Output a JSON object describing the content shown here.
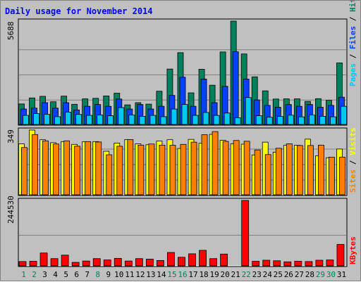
{
  "title": "Daily usage for November 2014",
  "colors": {
    "hits": "#00805c",
    "files": "#0040ff",
    "pages": "#00c8f0",
    "visits": "#ff8000",
    "sites": "#ffff00",
    "kbytes": "#ff0000",
    "weekend_label": "#00805c",
    "today_label": "#00805c"
  },
  "chart_data": [
    {
      "type": "bar",
      "name": "hits-files-pages",
      "x": [
        "1",
        "2",
        "3",
        "4",
        "5",
        "6",
        "7",
        "8",
        "9",
        "10",
        "11",
        "12",
        "13",
        "14",
        "15",
        "16",
        "17",
        "18",
        "19",
        "20",
        "21",
        "22",
        "23",
        "24",
        "25",
        "26",
        "27",
        "28",
        "29",
        "30",
        "31"
      ],
      "ymax_label": "5688",
      "ylim": [
        0,
        5688
      ],
      "axis_label_parts": [
        "Pages",
        "Files",
        "Hits"
      ],
      "axis_label_separator": " / ",
      "series": [
        {
          "name": "Hits",
          "values": [
            1130,
            1460,
            1550,
            1250,
            1560,
            1110,
            1410,
            1440,
            1570,
            1720,
            1080,
            1200,
            1120,
            1830,
            3050,
            3950,
            1740,
            3040,
            2160,
            3990,
            5688,
            3880,
            2620,
            1850,
            1400,
            1410,
            1410,
            1270,
            1420,
            1330,
            3390
          ]
        },
        {
          "name": "Files",
          "values": [
            850,
            900,
            1200,
            900,
            1200,
            800,
            1000,
            1100,
            1000,
            1400,
            850,
            1100,
            850,
            1000,
            1600,
            2600,
            1000,
            2500,
            1200,
            2100,
            4000,
            2500,
            1350,
            1050,
            950,
            1100,
            1000,
            1100,
            950,
            1050,
            1500
          ]
        },
        {
          "name": "Pages",
          "values": [
            500,
            600,
            560,
            430,
            680,
            550,
            500,
            520,
            480,
            930,
            520,
            450,
            500,
            430,
            850,
            1100,
            500,
            660,
            500,
            630,
            370,
            1480,
            480,
            400,
            440,
            510,
            420,
            520,
            450,
            420,
            1000
          ]
        }
      ]
    },
    {
      "type": "bar",
      "name": "visits-sites",
      "x": [
        "1",
        "2",
        "3",
        "4",
        "5",
        "6",
        "7",
        "8",
        "9",
        "10",
        "11",
        "12",
        "13",
        "14",
        "15",
        "16",
        "17",
        "18",
        "19",
        "20",
        "21",
        "22",
        "23",
        "24",
        "25",
        "26",
        "27",
        "28",
        "29",
        "30",
        "31"
      ],
      "ymax_label": "349",
      "ylim": [
        0,
        349
      ],
      "axis_label_parts": [
        "Sites",
        "Visits"
      ],
      "axis_label_separator": " / ",
      "series": [
        {
          "name": "Sites",
          "values": [
            275,
            349,
            297,
            281,
            287,
            272,
            286,
            287,
            235,
            279,
            298,
            275,
            270,
            290,
            297,
            250,
            299,
            278,
            326,
            294,
            275,
            273,
            215,
            284,
            230,
            267,
            267,
            300,
            210,
            200,
            247
          ]
        },
        {
          "name": "Visits",
          "values": [
            255,
            325,
            291,
            274,
            291,
            262,
            287,
            285,
            216,
            262,
            298,
            268,
            274,
            268,
            267,
            272,
            284,
            324,
            341,
            288,
            293,
            289,
            242,
            217,
            251,
            275,
            266,
            266,
            268,
            203,
            203
          ]
        }
      ]
    },
    {
      "type": "bar",
      "name": "kbytes",
      "x": [
        "1",
        "2",
        "3",
        "4",
        "5",
        "6",
        "7",
        "8",
        "9",
        "10",
        "11",
        "12",
        "13",
        "14",
        "15",
        "16",
        "17",
        "18",
        "19",
        "20",
        "21",
        "22",
        "23",
        "24",
        "25",
        "26",
        "27",
        "28",
        "29",
        "30",
        "31"
      ],
      "ymax_label": "244530",
      "ylim": [
        0,
        244530
      ],
      "axis_label_parts": [
        "KBytes"
      ],
      "axis_label_separator": "",
      "series": [
        {
          "name": "KBytes",
          "values": [
            16000,
            17000,
            48000,
            27000,
            40000,
            13000,
            18000,
            27000,
            22000,
            28000,
            18000,
            27000,
            25000,
            20000,
            50000,
            32000,
            45000,
            58000,
            27000,
            44000,
            0,
            244530,
            17000,
            21000,
            19000,
            15000,
            17000,
            16000,
            21000,
            22000,
            80000
          ]
        }
      ]
    }
  ],
  "x_labels": {
    "days": [
      "1",
      "2",
      "3",
      "4",
      "5",
      "6",
      "7",
      "8",
      "9",
      "10",
      "11",
      "12",
      "13",
      "14",
      "15",
      "16",
      "17",
      "18",
      "19",
      "20",
      "21",
      "22",
      "23",
      "24",
      "25",
      "26",
      "27",
      "28",
      "29",
      "30",
      "31"
    ],
    "weekend_days": [
      "1",
      "2",
      "8",
      "15",
      "16",
      "22",
      "29",
      "30"
    ]
  }
}
